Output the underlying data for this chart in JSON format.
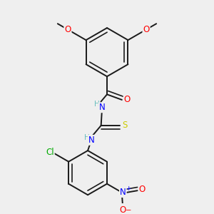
{
  "background_color": "#efefef",
  "bond_color": "#1a1a1a",
  "bond_width": 1.4,
  "atom_colors": {
    "C": "#1a1a1a",
    "H": "#6abfbf",
    "N": "#0000ff",
    "O": "#ff0000",
    "S": "#cccc00",
    "Cl": "#00aa00"
  },
  "font_size": 8.5,
  "fig_width": 3.0,
  "fig_height": 3.0,
  "dpi": 100,
  "xlim": [
    0.05,
    0.95
  ],
  "ylim": [
    0.02,
    0.98
  ]
}
